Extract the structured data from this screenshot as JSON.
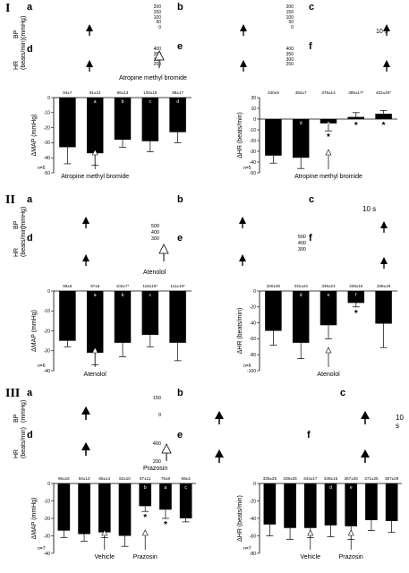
{
  "sections": [
    {
      "numeral": "I",
      "panels": [
        "a",
        "b",
        "c",
        "d",
        "e",
        "f"
      ],
      "bp_label": "BP\n(mmHg)",
      "hr_label": "HR\n(beats/min)",
      "bp_ticks": "200\n150\n100\n50\n0",
      "hr_ticks_e": "400\n350\n300\n250",
      "hr_ticks_f": "400\n350\n300\n250",
      "time_scale": "10 s",
      "drug_label_trace": "Atropine methyl bromide"
    },
    {
      "numeral": "II",
      "panels": [
        "a",
        "b",
        "c",
        "d",
        "e",
        "f"
      ],
      "bp_label": "BP\n(mmHg)",
      "hr_label": "HR\n(beats/min)",
      "hr_ticks_e": "500\n400\n300",
      "hr_ticks_f": "500\n400\n300",
      "time_scale": "10 s",
      "drug_label_trace": "Atenolol"
    },
    {
      "numeral": "III",
      "panels": [
        "a",
        "b",
        "c",
        "d",
        "e",
        "f"
      ],
      "bp_label": "BP\n(mmHg)",
      "hr_label": "HR\n(beats/min)",
      "bp_ticks_b": "150\n0",
      "hr_ticks_e": "400\n200",
      "time_scale": "10 s",
      "drug_label_trace": "Prazosin"
    }
  ],
  "chart_data": [
    {
      "type": "bar",
      "id": "I-map",
      "ylabel": "ΔMAP (mmHg)",
      "ylim": [
        -50,
        0
      ],
      "yticks": [
        0,
        -10,
        -20,
        -30,
        -40,
        -50
      ],
      "values": [
        -33,
        -37,
        -28,
        -29,
        -23
      ],
      "errors": [
        11,
        8,
        5,
        7,
        7
      ],
      "bar_letters": [
        "",
        "a",
        "b",
        "c",
        "d"
      ],
      "top_labels": [
        "94±7",
        "91±14",
        "86±13",
        "100±16",
        "88±17"
      ],
      "asterisks": [],
      "n_label": "n=5",
      "annotations": [
        {
          "text": "Atropine methyl bromide",
          "bar_index": 1
        }
      ]
    },
    {
      "type": "bar",
      "id": "I-hr",
      "ylabel": "ΔHR (beats/min)",
      "ylim": [
        -50,
        20
      ],
      "yticks": [
        20,
        10,
        0,
        -10,
        -20,
        -30,
        -40,
        -50
      ],
      "values": [
        -34,
        -36,
        -4,
        2,
        5
      ],
      "errors": [
        7,
        10,
        7,
        4,
        3
      ],
      "bar_letters": [
        "",
        "d",
        "e",
        "f",
        "g"
      ],
      "top_labels": [
        "340±9",
        "352±7",
        "378±14",
        "395±17*",
        "402±20*"
      ],
      "asterisks": [
        2,
        3,
        4
      ],
      "n_label": "n=5",
      "annotations": [
        {
          "text": "Atropine methyl bromide",
          "bar_index": 2
        }
      ]
    },
    {
      "type": "bar",
      "id": "II-map",
      "ylabel": "ΔMAP (mmHg)",
      "ylim": [
        -40,
        0
      ],
      "yticks": [
        0,
        -10,
        -20,
        -30,
        -40
      ],
      "values": [
        -25,
        -31,
        -26,
        -22,
        -26
      ],
      "errors": [
        3,
        6,
        7,
        6,
        9
      ],
      "bar_letters": [
        "",
        "a",
        "b",
        "c",
        ""
      ],
      "top_labels": [
        "96±6",
        "97±6",
        "102±7*",
        "118±16*",
        "111±16*"
      ],
      "asterisks": [],
      "n_label": "n=6",
      "annotations": [
        {
          "text": "Atenolol",
          "bar_index": 1
        }
      ]
    },
    {
      "type": "bar",
      "id": "II-hr",
      "ylabel": "ΔHR (beats/min)",
      "ylim": [
        -100,
        0
      ],
      "yticks": [
        0,
        -20,
        -40,
        -60,
        -80,
        -100
      ],
      "values": [
        -50,
        -65,
        -43,
        -15,
        -41
      ],
      "errors": [
        18,
        20,
        17,
        5,
        30
      ],
      "bar_letters": [
        "",
        "d",
        "e",
        "f",
        ""
      ],
      "top_labels": [
        "330±30",
        "331±23",
        "339±24",
        "328±15",
        "339±19"
      ],
      "asterisks": [
        3
      ],
      "n_label": "n=6",
      "annotations": [
        {
          "text": "Atenolol",
          "bar_index": 2
        }
      ]
    },
    {
      "type": "bar",
      "id": "III-map",
      "ylabel": "ΔMAP (mmHg)",
      "ylim": [
        -40,
        0
      ],
      "yticks": [
        0,
        -10,
        -20,
        -30,
        -40
      ],
      "values": [
        -27,
        -29,
        -28,
        -30,
        -13,
        -15,
        -20
      ],
      "errors": [
        4,
        4,
        3,
        6,
        3,
        5,
        2
      ],
      "bar_letters": [
        "",
        "",
        "",
        "",
        "b",
        "a",
        "c"
      ],
      "top_labels": [
        "96±15",
        "94±13",
        "86±14",
        "82±10",
        "87±11",
        "78±9",
        "69±3"
      ],
      "asterisks": [
        4,
        5
      ],
      "n_label": "n=7",
      "annotations": [
        {
          "text": "Vehicle",
          "bar_index": 2
        },
        {
          "text": "Prazosin",
          "bar_index": 4
        }
      ]
    },
    {
      "type": "bar",
      "id": "III-hr",
      "ylabel": "ΔHR (beats/min)",
      "ylim": [
        -80,
        0
      ],
      "yticks": [
        0,
        -20,
        -40,
        -60,
        -80
      ],
      "values": [
        -47,
        -51,
        -51,
        -48,
        -49,
        -42,
        -43
      ],
      "errors": [
        13,
        13,
        11,
        13,
        15,
        12,
        13
      ],
      "bar_letters": [
        "",
        "",
        "",
        "d",
        "e",
        "",
        ""
      ],
      "top_labels": [
        "335±25",
        "339±25",
        "344±17",
        "349±15",
        "367±25",
        "371±25",
        "387±29"
      ],
      "asterisks": [],
      "n_label": "n=7",
      "annotations": [
        {
          "text": "Vehicle",
          "bar_index": 2
        },
        {
          "text": "Prazosin",
          "bar_index": 4
        }
      ]
    }
  ],
  "colors": {
    "bar": "#000000",
    "axis": "#000000",
    "background": "#ffffff",
    "open_arrow": "#ffffff"
  }
}
